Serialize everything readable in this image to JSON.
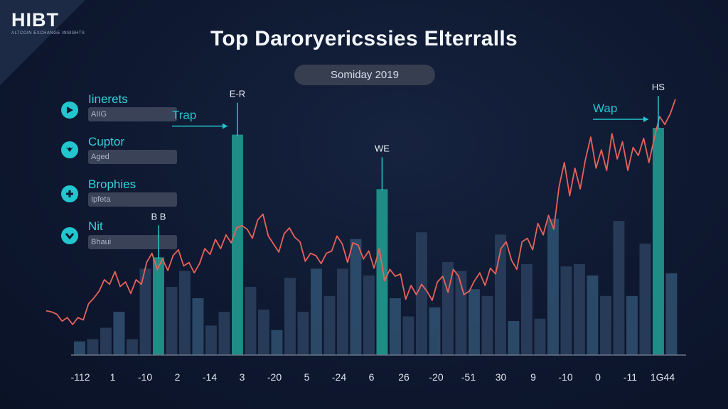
{
  "brand": {
    "name": "HIBT",
    "tagline": "ALTCOIN EXCHANGE INSIGHTS"
  },
  "title": "Top Daroryericssies Elterralls",
  "date_label": "Somiday 2019",
  "legend": [
    {
      "label": "Iinerets",
      "field": "AIIG",
      "icon": "play-icon"
    },
    {
      "label": "Cuptor",
      "field": "Aged",
      "icon": "shield-icon"
    },
    {
      "label": "Brophies",
      "field": "Ipfeta",
      "icon": "plus-icon"
    },
    {
      "label": "Nit",
      "field": "Bhaui",
      "icon": "check-icon"
    }
  ],
  "colors": {
    "line": "#e8625a",
    "highlight_bar": "#1f8c86",
    "bar": "#2a3e5c",
    "bar_light": "#2f4f6e",
    "accent": "#23c6cf",
    "axis": "#6a768a"
  },
  "chart_data": {
    "type": "bar",
    "title": "Top Daroryericssies Elterralls",
    "x_tick_labels": [
      "-112",
      "1",
      "-10",
      "2",
      "-14",
      "3",
      "-20",
      "5",
      "-24",
      "6",
      "26",
      "-20",
      "-51",
      "30",
      "9",
      "-10",
      "0",
      "-11",
      "1G44"
    ],
    "ylim": [
      0,
      100
    ],
    "bars": [
      {
        "value": 6,
        "highlight": false
      },
      {
        "value": 7,
        "highlight": false
      },
      {
        "value": 12,
        "highlight": false
      },
      {
        "value": 19,
        "highlight": false
      },
      {
        "value": 7,
        "highlight": false
      },
      {
        "value": 38,
        "highlight": false
      },
      {
        "value": 43,
        "highlight": true
      },
      {
        "value": 30,
        "highlight": false
      },
      {
        "value": 37,
        "highlight": false
      },
      {
        "value": 25,
        "highlight": false
      },
      {
        "value": 13,
        "highlight": false
      },
      {
        "value": 19,
        "highlight": false
      },
      {
        "value": 97,
        "highlight": true
      },
      {
        "value": 30,
        "highlight": false
      },
      {
        "value": 20,
        "highlight": false
      },
      {
        "value": 11,
        "highlight": false
      },
      {
        "value": 34,
        "highlight": false
      },
      {
        "value": 19,
        "highlight": false
      },
      {
        "value": 38,
        "highlight": false
      },
      {
        "value": 26,
        "highlight": false
      },
      {
        "value": 38,
        "highlight": false
      },
      {
        "value": 51,
        "highlight": false
      },
      {
        "value": 35,
        "highlight": false
      },
      {
        "value": 73,
        "highlight": true
      },
      {
        "value": 25,
        "highlight": false
      },
      {
        "value": 17,
        "highlight": false
      },
      {
        "value": 54,
        "highlight": false
      },
      {
        "value": 21,
        "highlight": false
      },
      {
        "value": 41,
        "highlight": false
      },
      {
        "value": 37,
        "highlight": false
      },
      {
        "value": 29,
        "highlight": false
      },
      {
        "value": 26,
        "highlight": false
      },
      {
        "value": 53,
        "highlight": false
      },
      {
        "value": 15,
        "highlight": false
      },
      {
        "value": 40,
        "highlight": false
      },
      {
        "value": 16,
        "highlight": false
      },
      {
        "value": 60,
        "highlight": false
      },
      {
        "value": 39,
        "highlight": false
      },
      {
        "value": 40,
        "highlight": false
      },
      {
        "value": 35,
        "highlight": false
      },
      {
        "value": 26,
        "highlight": false
      },
      {
        "value": 59,
        "highlight": false
      },
      {
        "value": 26,
        "highlight": false
      },
      {
        "value": 49,
        "highlight": false
      },
      {
        "value": 100,
        "highlight": true
      },
      {
        "value": 36,
        "highlight": false
      }
    ],
    "line_series": [
      20,
      19,
      17,
      11,
      14,
      8,
      14,
      12,
      26,
      31,
      37,
      47,
      43,
      54,
      41,
      45,
      35,
      47,
      43,
      62,
      70,
      56,
      65,
      55,
      68,
      73,
      59,
      62,
      53,
      61,
      74,
      69,
      82,
      74,
      86,
      79,
      92,
      94,
      91,
      83,
      99,
      104,
      85,
      78,
      71,
      87,
      92,
      84,
      80,
      63,
      70,
      68,
      61,
      70,
      72,
      85,
      78,
      62,
      79,
      77,
      65,
      72,
      57,
      74,
      46,
      56,
      50,
      52,
      30,
      42,
      34,
      43,
      37,
      29,
      45,
      50,
      36,
      56,
      50,
      34,
      37,
      46,
      53,
      42,
      57,
      52,
      74,
      80,
      64,
      56,
      80,
      83,
      73,
      96,
      86,
      103,
      91,
      128,
      149,
      120,
      144,
      126,
      152,
      171,
      144,
      160,
      142,
      174,
      152,
      167,
      142,
      162,
      155,
      170,
      149,
      170,
      189,
      182,
      191,
      204
    ],
    "line_ylim": [
      0,
      210
    ],
    "callouts": [
      {
        "label": "B B",
        "bar_index": 6
      },
      {
        "label": "E-R",
        "bar_index": 12
      },
      {
        "label": "WE",
        "bar_index": 23
      },
      {
        "label": "HS",
        "bar_index": 44
      }
    ],
    "arrows": [
      {
        "label": "Trap",
        "bar_index": 12
      },
      {
        "label": "Wap",
        "bar_index": 44
      }
    ]
  }
}
